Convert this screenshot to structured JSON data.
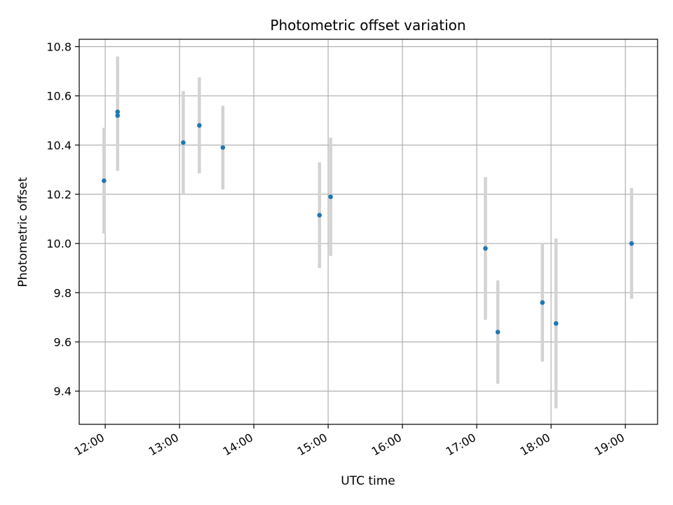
{
  "chart_data": {
    "type": "scatter",
    "title": "Photometric offset variation",
    "xlabel": "UTC time",
    "ylabel": "Photometric offset",
    "x_unit": "UTC hour",
    "xlim": [
      "11:39",
      "19:26"
    ],
    "ylim": [
      9.265,
      10.83
    ],
    "grid": true,
    "x_ticks": [
      "12:00",
      "13:00",
      "14:00",
      "15:00",
      "16:00",
      "17:00",
      "18:00",
      "19:00"
    ],
    "y_ticks": [
      "9.4",
      "9.6",
      "9.8",
      "10.0",
      "10.2",
      "10.4",
      "10.6",
      "10.8"
    ],
    "colors": {
      "points": "#1f77b4",
      "error_bars": "#d3d3d3",
      "grid": "#b0b0b0",
      "axes": "#000000"
    },
    "points": [
      {
        "time": "11:59",
        "y": 10.255,
        "err": 0.215
      },
      {
        "time": "12:10",
        "y": 10.535,
        "err": 0.225
      },
      {
        "time": "12:10",
        "y": 10.52,
        "err": 0.225
      },
      {
        "time": "13:03",
        "y": 10.41,
        "err": 0.21
      },
      {
        "time": "13:16",
        "y": 10.48,
        "err": 0.195
      },
      {
        "time": "13:35",
        "y": 10.39,
        "err": 0.17
      },
      {
        "time": "14:53",
        "y": 10.115,
        "err": 0.215
      },
      {
        "time": "15:02",
        "y": 10.19,
        "err": 0.24
      },
      {
        "time": "17:07",
        "y": 9.98,
        "err": 0.29
      },
      {
        "time": "17:17",
        "y": 9.64,
        "err": 0.21
      },
      {
        "time": "17:53",
        "y": 9.76,
        "err": 0.24
      },
      {
        "time": "18:04",
        "y": 9.675,
        "err": 0.345
      },
      {
        "time": "19:05",
        "y": 10.0,
        "err": 0.225
      }
    ]
  }
}
